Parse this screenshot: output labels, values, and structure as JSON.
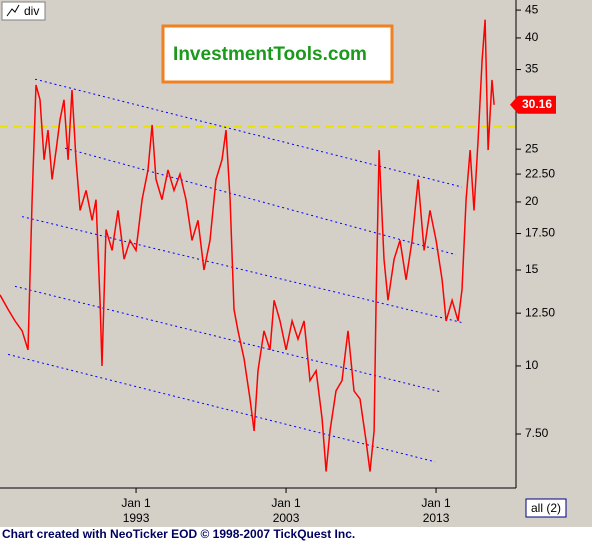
{
  "chart_data": {
    "type": "line",
    "watermark": "InvestmentTools.com",
    "footer": "Chart created with NeoTicker EOD © 1998-2007 TickQuest Inc.",
    "button": "all (2)",
    "series": [
      {
        "name": "div",
        "color": "#ff0000",
        "x": [
          1983.93,
          1984.47,
          1984.93,
          1985.4,
          1985.8,
          1986.07,
          1986.33,
          1986.6,
          1986.87,
          1987.13,
          1987.4,
          1987.67,
          1987.93,
          1988.2,
          1988.47,
          1988.73,
          1989.0,
          1989.27,
          1989.67,
          1990.07,
          1990.33,
          1990.6,
          1990.73,
          1991.0,
          1991.4,
          1991.8,
          1992.2,
          1992.6,
          1993.0,
          1993.4,
          1993.8,
          1994.07,
          1994.33,
          1994.73,
          1995.13,
          1995.53,
          1995.93,
          1996.33,
          1996.73,
          1997.13,
          1997.53,
          1997.93,
          1998.33,
          1998.73,
          1999.0,
          1999.27,
          1999.53,
          1999.8,
          2000.2,
          2000.6,
          2000.87,
          2001.13,
          2001.53,
          2001.93,
          2002.2,
          2002.6,
          2003.0,
          2003.4,
          2003.8,
          2004.2,
          2004.6,
          2005.0,
          2005.4,
          2005.67,
          2005.93,
          2006.33,
          2006.73,
          2007.13,
          2007.53,
          2007.93,
          2008.33,
          2008.6,
          2008.87,
          2009.0,
          2009.2,
          2009.53,
          2009.8,
          2010.2,
          2010.6,
          2011.0,
          2011.4,
          2011.8,
          2012.2,
          2012.6,
          2013.0,
          2013.4,
          2013.67,
          2014.07,
          2014.47,
          2014.73,
          2015.0,
          2015.27,
          2015.53,
          2015.8,
          2016.07,
          2016.27,
          2016.47,
          2016.73,
          2016.87
        ],
        "values": [
          13.5,
          12.7,
          12.1,
          11.6,
          10.7,
          20.2,
          32.8,
          30.8,
          23.9,
          27.1,
          22,
          24.9,
          28.3,
          30.8,
          23.9,
          32.1,
          23.9,
          19.3,
          21,
          18.5,
          20.2,
          13.2,
          10,
          17.8,
          16.3,
          19.3,
          15.7,
          17,
          16.3,
          20.2,
          22.9,
          27.7,
          22,
          20.2,
          22.9,
          21,
          22.5,
          20.2,
          17,
          18.5,
          15,
          17,
          22,
          23.9,
          27.1,
          20.2,
          12.7,
          11.6,
          10.3,
          8.7,
          7.6,
          9.8,
          11.6,
          10.7,
          13.2,
          12.1,
          10.7,
          12.1,
          11.2,
          12.1,
          9.4,
          9.8,
          8,
          6.4,
          7.6,
          9,
          9.4,
          11.6,
          9,
          8.7,
          7.3,
          6.4,
          7.6,
          13.2,
          24.9,
          15.7,
          13.2,
          15.7,
          17,
          14.4,
          17,
          22,
          16.3,
          19.3,
          17,
          14.4,
          12.1,
          13.2,
          12.1,
          13.8,
          20.2,
          24.9,
          19.3,
          26,
          36.4,
          43.2,
          24.9,
          33.5,
          30.16
        ]
      }
    ],
    "trendlines": [
      {
        "color": "#0000ff",
        "x": [
          1986.27,
          2014.73
        ],
        "y": [
          33.6,
          21.3
        ]
      },
      {
        "color": "#0000ff",
        "x": [
          1988.27,
          2014.33
        ],
        "y": [
          25.1,
          16.0
        ]
      },
      {
        "color": "#0000ff",
        "x": [
          1985.4,
          2014.8
        ],
        "y": [
          18.8,
          12.0
        ]
      },
      {
        "color": "#0000ff",
        "x": [
          1984.93,
          2013.33
        ],
        "y": [
          14.0,
          8.96
        ]
      },
      {
        "color": "#0000ff",
        "x": [
          1984.47,
          2012.93
        ],
        "y": [
          10.5,
          6.67
        ]
      }
    ],
    "hline": {
      "value": 27.5,
      "color": "#e8e000"
    },
    "log_scale": true,
    "xlim": [
      1983.93,
      2018.33
    ],
    "xticks": [
      {
        "value": 1993,
        "label": "Jan 1\n1993"
      },
      {
        "value": 2003,
        "label": "Jan 1\n2003"
      },
      {
        "value": 2013,
        "label": "Jan 1\n2013"
      }
    ],
    "ylim": [
      5.97,
      46.96
    ],
    "yticks": [
      45,
      40,
      35,
      25,
      {
        "value": 22.5,
        "label": "22.50"
      },
      20,
      {
        "value": 17.5,
        "label": "17.50"
      },
      15,
      {
        "value": 12.5,
        "label": "12.50"
      },
      10,
      {
        "value": 7.5,
        "label": "7.50"
      }
    ]
  }
}
